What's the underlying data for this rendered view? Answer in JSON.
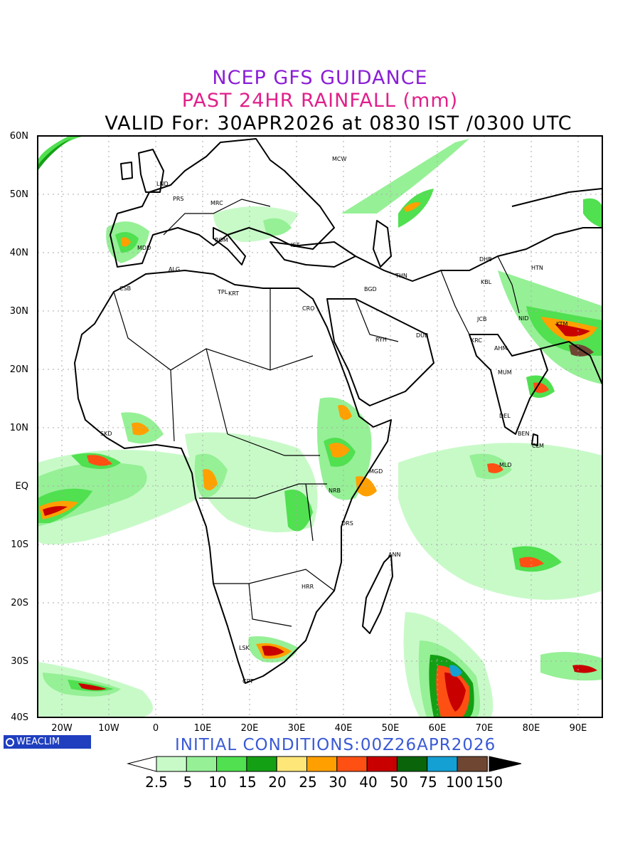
{
  "header": {
    "title": "NCEP GFS GUIDANCE",
    "subtitle": "PAST 24HR RAINFALL (mm)",
    "valid": "VALID For: 30APR2026 at 0830 IST /0300 UTC"
  },
  "footer": {
    "initial_conditions": "INITIAL CONDITIONS:00Z26APR2026",
    "logo_text": "WEACLIM"
  },
  "axes": {
    "lat_labels": [
      "60N",
      "50N",
      "40N",
      "30N",
      "20N",
      "10N",
      "EQ",
      "10S",
      "20S",
      "30S",
      "40S"
    ],
    "lon_labels": [
      "20W",
      "10W",
      "0",
      "10E",
      "20E",
      "30E",
      "40E",
      "50E",
      "60E",
      "70E",
      "80E",
      "90E"
    ]
  },
  "colorbar": {
    "labels": [
      "2.5",
      "5",
      "10",
      "15",
      "20",
      "25",
      "30",
      "40",
      "50",
      "75",
      "100",
      "150"
    ],
    "colors": [
      "#ffffff",
      "#c8fac8",
      "#96f096",
      "#50e050",
      "#14a014",
      "#ffe678",
      "#ffa000",
      "#ff5014",
      "#c80000",
      "#0a640a",
      "#14a0d2",
      "#6e4632",
      "#000000"
    ]
  },
  "stations": [
    {
      "code": "MCW"
    },
    {
      "code": "LND"
    },
    {
      "code": "PRS"
    },
    {
      "code": "MRC"
    },
    {
      "code": "MDD"
    },
    {
      "code": "ROM"
    },
    {
      "code": "IST"
    },
    {
      "code": "ALG"
    },
    {
      "code": "CSB"
    },
    {
      "code": "TPL"
    },
    {
      "code": "KRT"
    },
    {
      "code": "CRO"
    },
    {
      "code": "BGD"
    },
    {
      "code": "THN"
    },
    {
      "code": "DHB"
    },
    {
      "code": "HTN"
    },
    {
      "code": "KBL"
    },
    {
      "code": "JCB"
    },
    {
      "code": "RYH"
    },
    {
      "code": "DUB"
    },
    {
      "code": "KRC"
    },
    {
      "code": "AHM"
    },
    {
      "code": "MUM"
    },
    {
      "code": "DEL"
    },
    {
      "code": "BEN"
    },
    {
      "code": "CLM"
    },
    {
      "code": "MLD"
    },
    {
      "code": "MGD"
    },
    {
      "code": "NRB"
    },
    {
      "code": "DRS"
    },
    {
      "code": "ANN"
    },
    {
      "code": "HRR"
    },
    {
      "code": "LSK"
    },
    {
      "code": "CPT"
    },
    {
      "code": "SKD"
    },
    {
      "code": "NID"
    },
    {
      "code": "KTM"
    }
  ]
}
